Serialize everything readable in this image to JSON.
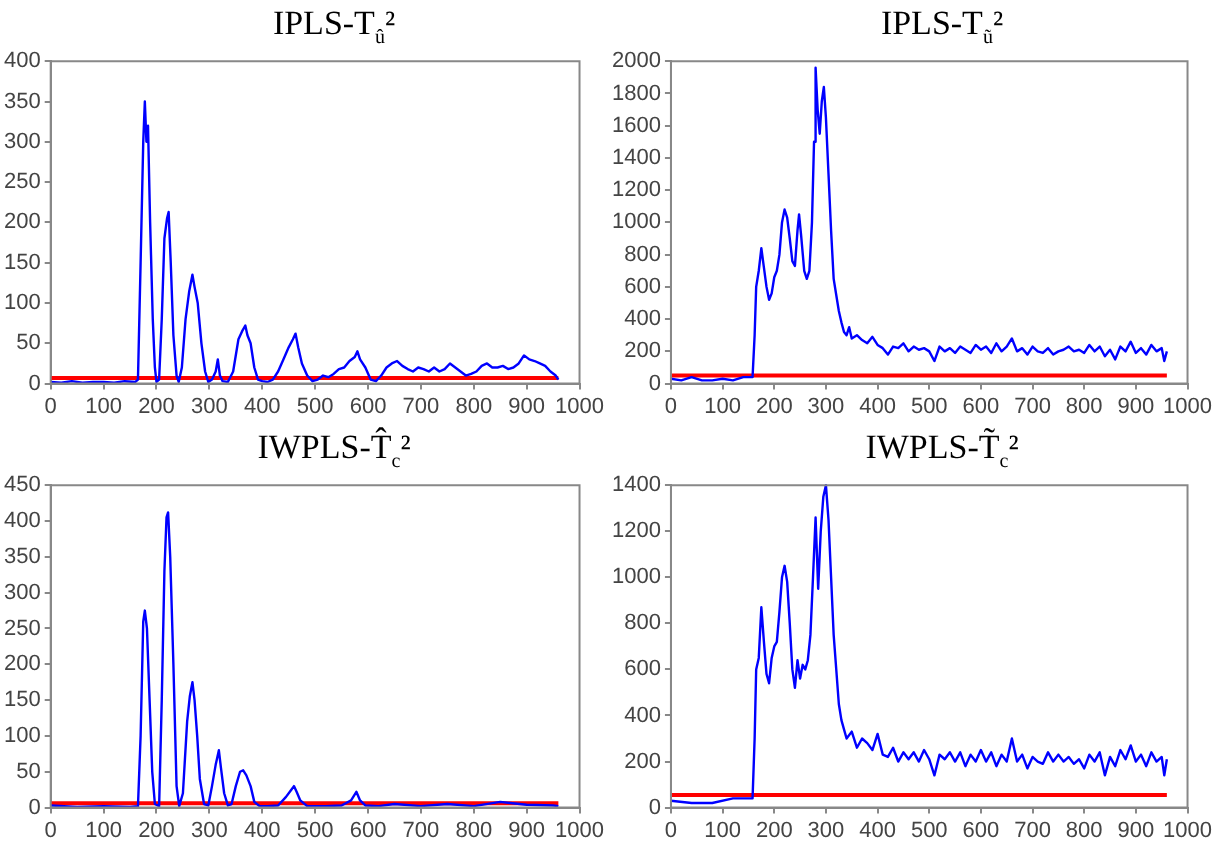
{
  "chart_data": [
    {
      "type": "line",
      "title": "IPLS-T$_{û}$²",
      "xlim": [
        0,
        1000
      ],
      "xticks": [
        0,
        100,
        200,
        300,
        400,
        500,
        600,
        700,
        800,
        900,
        1000
      ],
      "ylim": [
        0,
        400
      ],
      "yticks": [
        0,
        50,
        100,
        150,
        200,
        250,
        300,
        350,
        400
      ],
      "grid": false,
      "legend": false,
      "marker": "none",
      "x": [
        0,
        20,
        40,
        60,
        80,
        100,
        120,
        140,
        160,
        165,
        170,
        175,
        178,
        181,
        184,
        188,
        193,
        197,
        200,
        205,
        210,
        215,
        220,
        223,
        227,
        232,
        238,
        242,
        248,
        255,
        262,
        268,
        272,
        278,
        285,
        292,
        298,
        305,
        312,
        316,
        320,
        325,
        335,
        345,
        355,
        362,
        368,
        372,
        378,
        385,
        392,
        400,
        410,
        420,
        430,
        440,
        450,
        458,
        463,
        468,
        475,
        485,
        495,
        505,
        515,
        525,
        535,
        545,
        555,
        565,
        575,
        580,
        585,
        595,
        605,
        615,
        625,
        635,
        645,
        655,
        665,
        675,
        685,
        695,
        705,
        715,
        725,
        735,
        745,
        755,
        765,
        775,
        785,
        795,
        805,
        815,
        825,
        835,
        845,
        855,
        865,
        875,
        885,
        895,
        905,
        915,
        925,
        935,
        945,
        955,
        960
      ],
      "series": [
        {
          "color": "#0000ff",
          "values": [
            2,
            1,
            3,
            1,
            2,
            2,
            1,
            3,
            2,
            5,
            150,
            300,
            350,
            300,
            320,
            200,
            80,
            20,
            2,
            5,
            80,
            180,
            205,
            213,
            150,
            60,
            10,
            2,
            20,
            80,
            115,
            135,
            120,
            100,
            50,
            15,
            2,
            5,
            15,
            30,
            10,
            3,
            2,
            15,
            55,
            65,
            72,
            60,
            50,
            20,
            5,
            3,
            2,
            5,
            15,
            30,
            45,
            55,
            62,
            45,
            25,
            10,
            3,
            5,
            10,
            8,
            12,
            18,
            20,
            28,
            33,
            40,
            30,
            20,
            5,
            3,
            10,
            20,
            25,
            28,
            22,
            18,
            15,
            20,
            18,
            15,
            20,
            15,
            18,
            25,
            20,
            15,
            10,
            12,
            15,
            22,
            25,
            20,
            20,
            22,
            18,
            20,
            25,
            35,
            30,
            28,
            25,
            22,
            15,
            10,
            5
          ]
        }
      ],
      "ref_lines": [
        {
          "axis": "y",
          "value": 7,
          "color": "#ff0000"
        }
      ]
    },
    {
      "type": "line",
      "title": "IPLS-T$_{ũ}$²",
      "xlim": [
        0,
        1000
      ],
      "xticks": [
        0,
        100,
        200,
        300,
        400,
        500,
        600,
        700,
        800,
        900,
        1000
      ],
      "ylim": [
        0,
        2000
      ],
      "yticks": [
        0,
        200,
        400,
        600,
        800,
        1000,
        1200,
        1400,
        1600,
        1800,
        2000
      ],
      "grid": false,
      "legend": false,
      "marker": "none",
      "x": [
        0,
        20,
        40,
        60,
        80,
        100,
        120,
        140,
        158,
        162,
        165,
        170,
        175,
        180,
        185,
        190,
        195,
        200,
        205,
        210,
        215,
        220,
        225,
        230,
        235,
        240,
        245,
        248,
        252,
        258,
        263,
        268,
        273,
        277,
        280,
        284,
        288,
        292,
        296,
        300,
        305,
        310,
        315,
        320,
        325,
        330,
        335,
        340,
        345,
        350,
        360,
        370,
        380,
        390,
        400,
        410,
        420,
        430,
        440,
        450,
        460,
        470,
        480,
        490,
        500,
        510,
        520,
        530,
        540,
        550,
        560,
        570,
        580,
        590,
        600,
        610,
        620,
        630,
        640,
        650,
        660,
        670,
        680,
        690,
        700,
        710,
        720,
        730,
        740,
        750,
        760,
        770,
        780,
        790,
        800,
        810,
        820,
        830,
        840,
        850,
        860,
        870,
        880,
        890,
        900,
        910,
        920,
        930,
        940,
        950,
        955,
        960
      ],
      "series": [
        {
          "color": "#0000ff",
          "values": [
            30,
            20,
            40,
            20,
            20,
            30,
            20,
            40,
            40,
            300,
            600,
            700,
            840,
            720,
            600,
            520,
            560,
            660,
            700,
            800,
            1000,
            1080,
            1030,
            900,
            760,
            730,
            950,
            1050,
            920,
            700,
            650,
            700,
            1000,
            1500,
            1960,
            1700,
            1550,
            1750,
            1840,
            1650,
            1300,
            950,
            650,
            550,
            450,
            380,
            320,
            300,
            350,
            280,
            300,
            270,
            250,
            290,
            240,
            220,
            180,
            230,
            220,
            250,
            200,
            230,
            210,
            220,
            200,
            140,
            230,
            200,
            220,
            190,
            230,
            210,
            190,
            240,
            210,
            230,
            190,
            250,
            200,
            230,
            280,
            200,
            220,
            180,
            230,
            200,
            190,
            220,
            180,
            200,
            210,
            230,
            200,
            210,
            190,
            240,
            200,
            230,
            170,
            210,
            150,
            230,
            200,
            260,
            190,
            220,
            180,
            240,
            200,
            220,
            140,
            200
          ]
        }
      ],
      "ref_lines": [
        {
          "axis": "y",
          "value": 50,
          "color": "#ff0000"
        }
      ]
    },
    {
      "type": "line",
      "title": "IWPLS-T̂$_{c}$²",
      "xlim": [
        0,
        1000
      ],
      "xticks": [
        0,
        100,
        200,
        300,
        400,
        500,
        600,
        700,
        800,
        900,
        1000
      ],
      "ylim": [
        0,
        450
      ],
      "yticks": [
        0,
        50,
        100,
        150,
        200,
        250,
        300,
        350,
        400,
        450
      ],
      "grid": false,
      "legend": false,
      "marker": "none",
      "x": [
        0,
        50,
        100,
        150,
        165,
        170,
        175,
        178,
        182,
        187,
        192,
        197,
        205,
        210,
        215,
        219,
        222,
        226,
        232,
        238,
        243,
        250,
        258,
        263,
        268,
        272,
        277,
        282,
        290,
        298,
        305,
        312,
        318,
        322,
        328,
        335,
        342,
        350,
        358,
        364,
        370,
        378,
        385,
        395,
        410,
        430,
        445,
        455,
        460,
        465,
        472,
        485,
        520,
        550,
        568,
        578,
        585,
        595,
        620,
        650,
        700,
        750,
        800,
        850,
        900,
        950,
        960
      ],
      "series": [
        {
          "color": "#0000ff",
          "values": [
            3,
            1,
            2,
            1,
            2,
            100,
            260,
            275,
            250,
            150,
            50,
            5,
            2,
            150,
            330,
            405,
            412,
            350,
            200,
            30,
            2,
            20,
            120,
            155,
            175,
            150,
            100,
            40,
            5,
            3,
            30,
            60,
            80,
            55,
            20,
            3,
            5,
            30,
            50,
            52,
            45,
            30,
            8,
            2,
            2,
            3,
            15,
            25,
            30,
            22,
            10,
            2,
            2,
            3,
            10,
            22,
            10,
            3,
            2,
            5,
            2,
            5,
            2,
            8,
            4,
            3,
            2
          ]
        }
      ],
      "ref_lines": [
        {
          "axis": "y",
          "value": 6,
          "color": "#ff0000"
        }
      ]
    },
    {
      "type": "line",
      "title": "IWPLS-T̃$_{c}$²",
      "xlim": [
        0,
        1000
      ],
      "xticks": [
        0,
        100,
        200,
        300,
        400,
        500,
        600,
        700,
        800,
        900,
        1000
      ],
      "ylim": [
        0,
        1400
      ],
      "yticks": [
        0,
        200,
        400,
        600,
        800,
        1000,
        1200,
        1400
      ],
      "grid": false,
      "legend": false,
      "marker": "none",
      "x": [
        0,
        40,
        80,
        120,
        158,
        162,
        165,
        170,
        175,
        180,
        185,
        190,
        195,
        200,
        205,
        210,
        215,
        220,
        225,
        230,
        235,
        240,
        245,
        250,
        255,
        260,
        265,
        270,
        275,
        280,
        285,
        290,
        295,
        300,
        305,
        310,
        315,
        320,
        325,
        330,
        335,
        340,
        350,
        360,
        370,
        380,
        390,
        400,
        410,
        420,
        430,
        440,
        450,
        460,
        470,
        480,
        490,
        500,
        510,
        520,
        530,
        540,
        550,
        560,
        570,
        580,
        590,
        600,
        610,
        620,
        630,
        640,
        650,
        660,
        670,
        680,
        690,
        700,
        710,
        720,
        730,
        740,
        750,
        760,
        770,
        780,
        790,
        800,
        810,
        820,
        830,
        840,
        850,
        860,
        870,
        880,
        890,
        900,
        910,
        920,
        930,
        940,
        950,
        955,
        960
      ],
      "series": [
        {
          "color": "#0000ff",
          "values": [
            30,
            20,
            20,
            40,
            40,
            300,
            600,
            650,
            870,
            720,
            580,
            540,
            650,
            700,
            720,
            850,
            1000,
            1050,
            980,
            800,
            600,
            520,
            640,
            560,
            620,
            600,
            640,
            750,
            1000,
            1260,
            950,
            1200,
            1350,
            1400,
            1250,
            1000,
            750,
            600,
            450,
            380,
            340,
            300,
            330,
            260,
            300,
            280,
            250,
            320,
            230,
            220,
            260,
            200,
            240,
            210,
            240,
            200,
            250,
            210,
            140,
            230,
            210,
            240,
            200,
            240,
            180,
            230,
            200,
            250,
            200,
            240,
            180,
            230,
            200,
            300,
            200,
            230,
            170,
            220,
            200,
            190,
            240,
            200,
            230,
            200,
            220,
            190,
            210,
            170,
            230,
            200,
            240,
            140,
            220,
            180,
            250,
            210,
            270,
            200,
            230,
            180,
            240,
            200,
            220,
            140,
            210
          ]
        }
      ],
      "ref_lines": [
        {
          "axis": "y",
          "value": 55,
          "color": "#ff0000"
        }
      ]
    }
  ]
}
